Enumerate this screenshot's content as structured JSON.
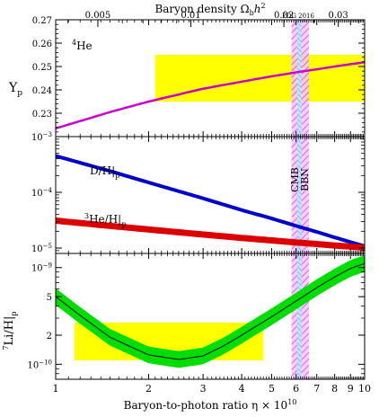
{
  "chart_data": {
    "type": "line",
    "top_axis": {
      "label": "Baryon density Ω",
      "label_sub": "b",
      "label_after": "h",
      "label_sup": "2",
      "ticks": [
        0.005,
        0.01,
        0.02,
        0.03
      ],
      "tick_labels": [
        "0.005",
        "0.01",
        "0.02",
        "0.03"
      ],
      "eta_per_unit": 273.9
    },
    "bottom_axis": {
      "label": "Baryon-to-photon ratio η × 10",
      "label_sup": "10",
      "scale": "log",
      "xlim": [
        1,
        10
      ],
      "ticks": [
        1,
        2,
        3,
        4,
        5,
        6,
        7,
        8,
        9,
        10
      ],
      "tick_labels": [
        "1",
        "2",
        "3",
        "4",
        "5",
        "6",
        "7",
        "8",
        "9",
        "10"
      ]
    },
    "note": "PDG 2016",
    "vertical_bands": [
      {
        "name": "CMB",
        "eta_range": [
          6.05,
          6.25
        ],
        "color": "#4fc3f7"
      },
      {
        "name": "BBN",
        "eta_range": [
          5.8,
          6.6
        ],
        "color": "#e040fb"
      }
    ],
    "panels": [
      {
        "id": "he4",
        "label": "4He",
        "label_sup": "4",
        "label_main": "He",
        "ylabel": "Y",
        "ylabel_sub": "p",
        "scale": "linear",
        "ylim": [
          0.22,
          0.27
        ],
        "ticks": [
          0.23,
          0.24,
          0.25,
          0.26,
          0.27
        ],
        "tick_labels": [
          "0.23",
          "0.24",
          "0.25",
          "0.26",
          "0.27"
        ],
        "observation_box": {
          "eta_range": [
            2.1,
            10
          ],
          "y_range": [
            0.235,
            0.255
          ],
          "color": "#ffff00"
        },
        "series": [
          {
            "color": "#cc00cc",
            "x": [
              1,
              1.5,
              2,
              3,
              4,
              5,
              6,
              7,
              8,
              9,
              10
            ],
            "y": [
              0.2235,
              0.2305,
              0.235,
              0.2405,
              0.2435,
              0.2458,
              0.2475,
              0.2488,
              0.25,
              0.251,
              0.2518
            ],
            "width": 2.5
          }
        ]
      },
      {
        "id": "dh_he3",
        "scale": "log",
        "ylim": [
          8e-06,
          0.001
        ],
        "ticks": [
          0.001,
          0.0001,
          1e-05
        ],
        "tick_labels": [
          "10−3",
          "10−4",
          "10−5"
        ],
        "tick_labels_base": "10",
        "tick_labels_exp": [
          "−3",
          "−4",
          "−5"
        ],
        "observation_box": {
          "eta_range": [
            5.85,
            6.5
          ],
          "y_range": [
            2.45e-05,
            2.65e-05
          ],
          "color": "#ffff00"
        },
        "series": [
          {
            "name": "D/H|p",
            "label_main": "D/H|",
            "label_sub": "p",
            "color": "#0000cc",
            "x": [
              1,
              1.5,
              2,
              3,
              4,
              5,
              6,
              7,
              8,
              9,
              10
            ],
            "y": [
              0.00045,
              0.00024,
              0.00015,
              7.8e-05,
              4.8e-05,
              3.4e-05,
              2.5e-05,
              1.95e-05,
              1.55e-05,
              1.28e-05,
              1.08e-05
            ],
            "width": 4
          },
          {
            "name": "3He/H|p",
            "label_sup": "3",
            "label_main": "He/H|",
            "label_sub": "p",
            "color": "#dd0000",
            "x": [
              1,
              1.5,
              2,
              3,
              4,
              5,
              6,
              7,
              8,
              9,
              10
            ],
            "y": [
              3.1e-05,
              2.5e-05,
              2.15e-05,
              1.75e-05,
              1.52e-05,
              1.37e-05,
              1.26e-05,
              1.18e-05,
              1.11e-05,
              1.06e-05,
              1.01e-05
            ],
            "width": 7
          }
        ]
      },
      {
        "id": "li7",
        "ylabel_sup": "7",
        "ylabel_main": "Li/H|",
        "ylabel_sub": "p",
        "scale": "log",
        "ylim": [
          7e-11,
          1.4e-09
        ],
        "ticks": [
          1e-09,
          5e-10,
          2e-10,
          1e-10
        ],
        "tick_labels": [
          "10−9",
          "5",
          "2",
          "10−10"
        ],
        "observation_box": {
          "eta_range": [
            1.15,
            4.7
          ],
          "y_range": [
            1.1e-10,
            2.7e-10
          ],
          "color": "#ffff00"
        },
        "series": [
          {
            "color": "#00dd00",
            "band_factor": 1.22,
            "line_color": "#000000",
            "x": [
              1,
              1.2,
              1.5,
              2,
              2.5,
              3,
              3.5,
              4,
              5,
              6,
              7,
              8,
              9,
              10
            ],
            "y": [
              5e-10,
              3.2e-10,
              1.9e-10,
              1.25e-10,
              1.12e-10,
              1.22e-10,
              1.55e-10,
              2e-10,
              3.1e-10,
              4.5e-10,
              6.2e-10,
              8e-10,
              9.8e-10,
              1.1e-09
            ]
          }
        ]
      }
    ]
  }
}
